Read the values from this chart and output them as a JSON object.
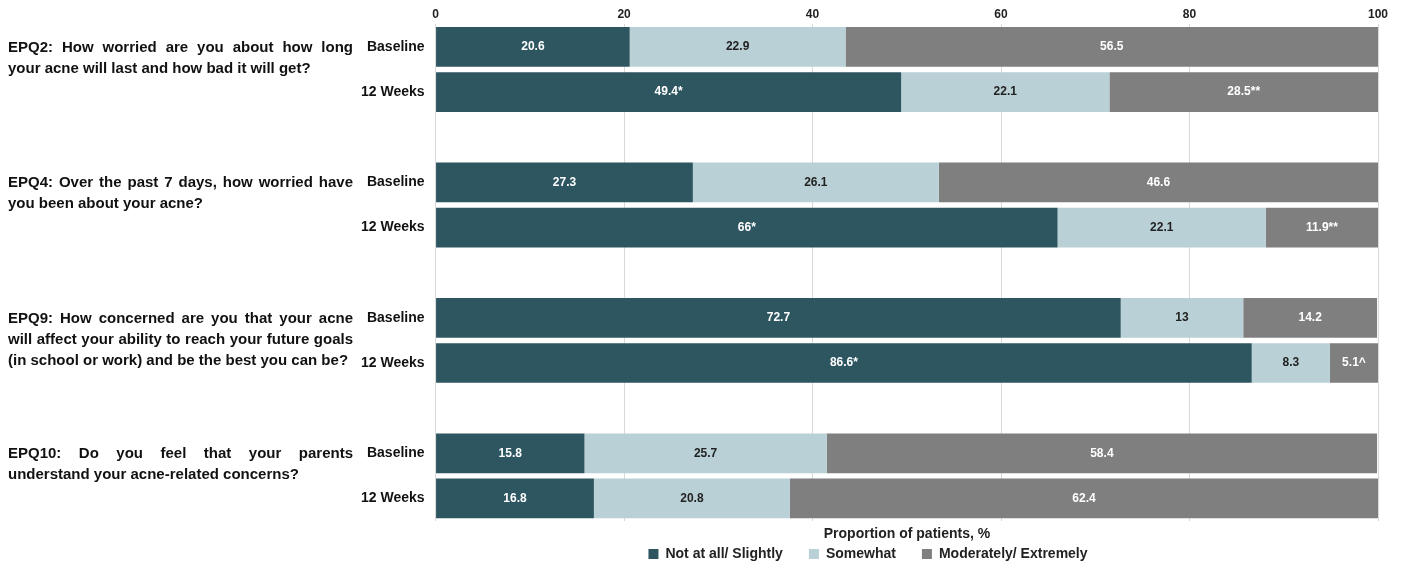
{
  "chart_data": {
    "type": "bar",
    "orientation": "horizontal",
    "stacked": true,
    "xlabel": "Proportion of patients, %",
    "categories": [
      "Baseline",
      "12 Weeks",
      null,
      "Baseline",
      "12 Weeks",
      null,
      "Baseline",
      "12 Weeks",
      null,
      "Baseline",
      "12 Weeks"
    ],
    "series": [
      {
        "name": "Not at all/ Slightly",
        "color": "#2d5661",
        "values": [
          20.6,
          49.4,
          null,
          27.3,
          66,
          null,
          72.7,
          86.6,
          null,
          15.8,
          16.8
        ],
        "value_labels": [
          "20.6",
          "49.4*",
          null,
          "27.3",
          "66*",
          null,
          "72.7",
          "86.6*",
          null,
          "15.8",
          "16.8"
        ]
      },
      {
        "name": "Somewhat",
        "color": "#b9d0d6",
        "values": [
          22.9,
          22.1,
          null,
          26.1,
          22.1,
          null,
          13,
          8.3,
          null,
          25.7,
          20.8
        ],
        "value_labels": [
          "22.9",
          "22.1",
          null,
          "26.1",
          "22.1",
          null,
          "13",
          "8.3",
          null,
          "25.7",
          "20.8"
        ]
      },
      {
        "name": "Moderately/ Extremely",
        "color": "#7f7f7f",
        "values": [
          56.5,
          28.5,
          null,
          46.6,
          11.9,
          null,
          14.2,
          5.1,
          null,
          58.4,
          62.4
        ],
        "value_labels": [
          "56.5",
          "28.5**",
          null,
          "46.6",
          "11.9**",
          null,
          "14.2",
          "5.1^",
          null,
          "58.4",
          "62.4"
        ]
      }
    ],
    "xlim": [
      0,
      100
    ],
    "xticks": [
      0,
      20,
      40,
      60,
      80,
      100
    ],
    "grid": "x",
    "legend": "bottom",
    "annotations": [
      "EPQ2: How worried are you about how long your acne will last and how bad it will get?",
      "EPQ4: Over the past 7 days, how worried have you been about your acne?",
      "EPQ9: How concerned are you that your acne will affect your ability to reach your future goals (in school or work) and be the best you can be?",
      "EPQ10: Do you feel that your parents understand your acne-related concerns?"
    ]
  }
}
